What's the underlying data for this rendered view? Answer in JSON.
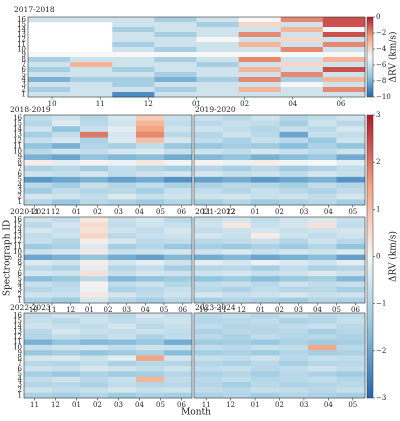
{
  "x_label": "Month",
  "y_label": "Spectrograph ID",
  "chart_data": [
    {
      "type": "heatmap",
      "title": "2017-2018",
      "row_labels": [
        "16",
        "15",
        "14",
        "13",
        "12",
        "11",
        "10",
        "9",
        "8",
        "7",
        "6",
        "5",
        "4",
        "3",
        "2",
        "1"
      ],
      "categories": [
        "10",
        "11",
        "12",
        "01",
        "02",
        "04",
        "06"
      ],
      "clim": [
        -10,
        0
      ],
      "colorbar": {
        "label": "ΔRV (km/s)",
        "lim": [
          -10,
          0
        ],
        "ticks": [
          0,
          {
            "value": -2,
            "label": "−2"
          },
          {
            "value": -4,
            "label": "−4"
          },
          {
            "value": -6,
            "label": "−6"
          },
          {
            "value": -8,
            "label": "−8"
          },
          {
            "value": -10,
            "label": "−10"
          }
        ]
      },
      "values": [
        [
          -6,
          -6,
          -6,
          -7,
          -6,
          -5,
          -2,
          -1
        ],
        [
          null,
          null,
          -6,
          -6,
          -7,
          -4,
          -6,
          -1
        ],
        [
          null,
          null,
          -7,
          -6,
          -6,
          -6,
          -3,
          -5
        ],
        [
          null,
          null,
          -6,
          -7,
          -6,
          -2,
          -6,
          -1
        ],
        [
          null,
          null,
          -6,
          -6,
          -5,
          -6,
          -4,
          -6
        ],
        [
          null,
          null,
          -7,
          -6,
          -6,
          -3,
          -6,
          -2
        ],
        [
          null,
          null,
          -6,
          -7,
          -6,
          -6,
          -2,
          -6
        ],
        [
          -5,
          -5,
          -5,
          -5,
          -5,
          -5,
          -5,
          -5
        ],
        [
          -7,
          -6,
          -6,
          -7,
          -6,
          -2,
          -6,
          -3
        ],
        [
          -6,
          -3,
          -6,
          -6,
          -7,
          -6,
          -4,
          -6
        ],
        [
          -7,
          -6,
          -7,
          -6,
          -6,
          -3,
          -6,
          -1
        ],
        [
          -6,
          -6,
          -6,
          -7,
          -6,
          -6,
          -2,
          -6
        ],
        [
          -8,
          -7,
          -7,
          -8,
          -7,
          -2,
          -7,
          -3
        ],
        [
          -6,
          -6,
          -7,
          -6,
          -6,
          -6,
          -5,
          -6
        ],
        [
          -7,
          -6,
          -6,
          -7,
          -6,
          -3,
          -6,
          -2
        ],
        [
          -6,
          -6,
          -9,
          -6,
          -6,
          -6,
          -6,
          -6
        ]
      ]
    },
    {
      "type": "heatmap",
      "title": "2018-2019",
      "row_labels": [
        "16",
        "15",
        "14",
        "13",
        "12",
        "11",
        "10",
        "9",
        "8",
        "7",
        "6",
        "5",
        "4",
        "3",
        "2",
        "1"
      ],
      "categories": [
        "11",
        "12",
        "01",
        "02",
        "03",
        "04",
        "05",
        "06"
      ],
      "clim": [
        -3,
        3
      ],
      "colorbar": {
        "label": "ΔRV (km/s)",
        "lim": [
          -3,
          3
        ],
        "ticks": [
          3,
          2,
          1,
          0,
          {
            "value": -1,
            "label": "−1"
          },
          {
            "value": -2,
            "label": "−2"
          },
          {
            "value": -3,
            "label": "−3"
          }
        ]
      },
      "values": [
        [
          -0.8,
          -0.6,
          -1.0,
          -0.5,
          0.8,
          -0.7
        ],
        [
          -1.0,
          -0.4,
          -0.9,
          -0.6,
          1.2,
          -0.8
        ],
        [
          -0.6,
          -1.5,
          -0.7,
          -0.3,
          1.5,
          -0.6
        ],
        [
          -1.2,
          -0.8,
          2.0,
          -0.5,
          1.8,
          -0.9
        ],
        [
          -0.7,
          -0.5,
          -1.1,
          -0.4,
          1.0,
          -0.5
        ],
        [
          -1.5,
          -1.8,
          -1.0,
          -1.2,
          -0.8,
          -1.4
        ],
        [
          -0.9,
          -0.6,
          -0.8,
          -0.5,
          -0.4,
          -0.7
        ],
        [
          -1.8,
          -2.0,
          -1.5,
          -1.7,
          -1.6,
          -1.9
        ],
        [
          0.2,
          -0.3,
          0.1,
          -0.2,
          0.3,
          -0.1
        ],
        [
          -1.1,
          -0.9,
          -1.3,
          -0.8,
          -1.0,
          -1.2
        ],
        [
          -0.6,
          -0.7,
          -0.5,
          -0.8,
          -0.6,
          -0.5
        ],
        [
          -2.2,
          -2.0,
          -1.8,
          -2.1,
          -1.9,
          -2.3
        ],
        [
          -0.9,
          -1.2,
          -0.7,
          -1.0,
          -0.8,
          -1.1
        ],
        [
          -1.3,
          -0.8,
          -1.0,
          -0.9,
          -1.2,
          -0.7
        ],
        [
          -0.5,
          -0.6,
          -0.8,
          -0.4,
          -0.7,
          -0.6
        ],
        [
          -1.0,
          -1.4,
          -0.9,
          -1.1,
          -1.3,
          -1.0
        ]
      ]
    },
    {
      "type": "heatmap",
      "title": "2019-2020",
      "categories": [
        "11",
        "12",
        "01",
        "02",
        "03",
        "04",
        "05"
      ],
      "clim": [
        -3,
        3
      ],
      "values": [
        [
          -0.7,
          -0.9,
          -0.6,
          -1.0,
          -0.8,
          -0.6
        ],
        [
          -0.9,
          -0.7,
          -0.8,
          -1.2,
          -0.6,
          -0.9
        ],
        [
          -0.6,
          -0.8,
          -1.0,
          -0.7,
          -0.9,
          -0.5
        ],
        [
          -1.0,
          -0.6,
          -0.9,
          -2.0,
          -0.7,
          -0.8
        ],
        [
          -0.8,
          -1.1,
          -0.7,
          -0.9,
          -1.4,
          -0.6
        ],
        [
          -1.4,
          -1.2,
          -1.3,
          -1.6,
          -1.1,
          -1.5
        ],
        [
          -0.6,
          -0.8,
          -0.5,
          -0.7,
          -0.9,
          -0.6
        ],
        [
          -1.7,
          -1.5,
          -1.8,
          -1.6,
          -1.4,
          -1.9
        ],
        [
          0.1,
          -0.2,
          0.2,
          -0.1,
          0.0,
          -0.3
        ],
        [
          -1.0,
          -1.2,
          -0.9,
          -1.3,
          -1.1,
          -0.8
        ],
        [
          -0.5,
          -0.7,
          -0.6,
          -0.8,
          -0.5,
          -0.7
        ],
        [
          -2.1,
          -1.9,
          -2.2,
          -2.0,
          -1.8,
          -2.3
        ],
        [
          -1.1,
          -0.9,
          -1.0,
          -1.2,
          -0.8,
          -1.0
        ],
        [
          -0.8,
          -1.0,
          -0.7,
          -0.9,
          -1.1,
          -0.8
        ],
        [
          -0.6,
          -0.5,
          -0.7,
          -0.6,
          -0.8,
          -0.5
        ],
        [
          -1.2,
          -1.0,
          -1.3,
          -1.1,
          -0.9,
          -1.2
        ]
      ]
    },
    {
      "type": "heatmap",
      "title": "2020-2021",
      "row_labels": [
        "16",
        "15",
        "14",
        "13",
        "12",
        "11",
        "10",
        "9",
        "8",
        "7",
        "6",
        "5",
        "4",
        "3",
        "2",
        "1"
      ],
      "categories": [
        "10",
        "11",
        "12",
        "01",
        "02",
        "03",
        "04",
        "05",
        "06"
      ],
      "clim": [
        -3,
        3
      ],
      "values": [
        [
          -0.6,
          -0.8,
          0.3,
          -0.7,
          -0.5,
          -0.9
        ],
        [
          -0.9,
          -0.5,
          0.5,
          -0.8,
          -0.6,
          -0.7
        ],
        [
          -0.5,
          -0.7,
          0.4,
          -0.6,
          -0.8,
          -0.5
        ],
        [
          -0.8,
          -0.6,
          0.6,
          -0.9,
          -0.7,
          -0.6
        ],
        [
          -0.7,
          -1.0,
          0.2,
          -0.5,
          -0.9,
          -0.8
        ],
        [
          -1.3,
          -1.1,
          -0.4,
          -1.2,
          -1.0,
          -1.4
        ],
        [
          -0.6,
          -0.5,
          0.3,
          -0.7,
          -0.6,
          -0.5
        ],
        [
          -2.0,
          -1.8,
          -1.5,
          -1.9,
          -2.1,
          -1.7
        ],
        [
          -0.4,
          -0.6,
          0.2,
          -0.5,
          -0.3,
          -0.6
        ],
        [
          -0.9,
          -1.1,
          -0.3,
          -1.0,
          -0.8,
          -1.2
        ],
        [
          -0.5,
          -0.6,
          0.4,
          -0.7,
          -0.5,
          -0.6
        ],
        [
          -1.6,
          -1.4,
          -0.9,
          -1.7,
          -1.5,
          -1.3
        ],
        [
          -0.7,
          -0.9,
          0.1,
          -0.8,
          -0.6,
          -1.0
        ],
        [
          -1.0,
          -0.8,
          -0.2,
          -1.1,
          -0.9,
          -0.7
        ],
        [
          -0.6,
          -0.7,
          0.3,
          -0.5,
          -0.8,
          -0.6
        ],
        [
          -1.1,
          -1.3,
          -0.5,
          -1.0,
          -1.2,
          -0.9
        ]
      ]
    },
    {
      "type": "heatmap",
      "title": "2021-2022",
      "categories": [
        "10",
        "11",
        "12",
        "01",
        "02",
        "03",
        "04",
        "05",
        "06"
      ],
      "clim": [
        -3,
        3
      ],
      "values": [
        [
          -0.7,
          -0.5,
          -0.8,
          -0.6,
          -0.4,
          -0.7
        ],
        [
          -0.6,
          0.3,
          -0.7,
          -0.5,
          0.4,
          -0.8
        ],
        [
          -0.8,
          -0.6,
          -0.5,
          -0.7,
          -0.6,
          -0.5
        ],
        [
          -0.5,
          -0.7,
          0.2,
          -0.6,
          -0.8,
          -0.6
        ],
        [
          -0.9,
          -0.8,
          -0.7,
          -1.0,
          -0.6,
          -0.9
        ],
        [
          -1.2,
          -1.4,
          -1.1,
          -1.3,
          -1.0,
          -1.5
        ],
        [
          -0.6,
          -0.4,
          -0.7,
          -0.5,
          -0.6,
          -0.4
        ],
        [
          -1.9,
          -1.7,
          -2.0,
          -1.8,
          -1.6,
          -2.1
        ],
        [
          -0.3,
          -0.5,
          -0.2,
          -0.4,
          -0.6,
          -0.3
        ],
        [
          -1.0,
          -0.9,
          -1.2,
          -0.8,
          -1.1,
          -1.0
        ],
        [
          -0.6,
          -0.5,
          -0.7,
          -0.6,
          -0.4,
          -0.6
        ],
        [
          -1.5,
          -1.3,
          -1.6,
          -1.4,
          -1.2,
          -1.7
        ],
        [
          -0.8,
          -0.7,
          -0.9,
          -0.6,
          -0.8,
          -0.7
        ],
        [
          -0.9,
          -1.1,
          -0.8,
          -1.0,
          -0.9,
          -1.2
        ],
        [
          -0.5,
          -0.7,
          -0.6,
          -0.5,
          -0.7,
          -0.6
        ],
        [
          -1.2,
          -1.0,
          -1.1,
          -1.3,
          -1.0,
          -1.1
        ]
      ]
    },
    {
      "type": "heatmap",
      "title": "2022-2023",
      "row_labels": [
        "16",
        "15",
        "14",
        "13",
        "12",
        "11",
        "10",
        "9",
        "8",
        "7",
        "6",
        "5",
        "4",
        "3",
        "2",
        "1"
      ],
      "categories": [
        "11",
        "12",
        "01",
        "02",
        "03",
        "04",
        "05",
        "06"
      ],
      "clim": [
        -3,
        3
      ],
      "values": [
        [
          -0.8,
          -0.6,
          -0.7,
          -0.9,
          -0.5,
          -0.7
        ],
        [
          -0.7,
          -0.9,
          -0.6,
          -0.8,
          -0.7,
          -0.6
        ],
        [
          -0.6,
          -0.7,
          -0.8,
          -0.5,
          -0.9,
          -0.7
        ],
        [
          -0.9,
          -0.5,
          -0.7,
          -0.8,
          -0.6,
          -0.8
        ],
        [
          -1.0,
          -0.8,
          -0.9,
          -0.7,
          -1.1,
          -0.8
        ],
        [
          -1.8,
          -1.5,
          -1.7,
          -1.6,
          -1.4,
          -1.9
        ],
        [
          -0.7,
          -0.6,
          -0.5,
          -0.8,
          -0.6,
          -0.7
        ],
        [
          -1.4,
          -1.2,
          -1.5,
          -1.3,
          -1.1,
          -1.6
        ],
        [
          -0.5,
          -0.4,
          -0.6,
          -0.3,
          1.5,
          -0.5
        ],
        [
          -0.9,
          -1.0,
          -0.8,
          -1.1,
          -0.9,
          -1.0
        ],
        [
          -0.6,
          -0.7,
          -0.5,
          -0.6,
          -0.8,
          -0.6
        ],
        [
          -1.2,
          -1.4,
          -1.1,
          -1.3,
          -1.2,
          -1.0
        ],
        [
          -0.8,
          -0.6,
          -0.9,
          -0.7,
          1.2,
          -0.8
        ],
        [
          -1.0,
          -0.9,
          -1.1,
          -0.8,
          -1.0,
          -0.9
        ],
        [
          -0.6,
          -0.8,
          -0.7,
          -0.5,
          -0.7,
          -0.6
        ],
        [
          -1.1,
          -1.2,
          -1.0,
          -1.3,
          -1.1,
          -1.2
        ]
      ]
    },
    {
      "type": "heatmap",
      "title": "2023-2024",
      "categories": [
        "11",
        "12",
        "01",
        "02",
        "03",
        "04",
        "05"
      ],
      "clim": [
        -3,
        3
      ],
      "values": [
        [
          -0.9,
          -0.8,
          -1.0,
          -0.7,
          -0.9,
          -0.8
        ],
        [
          -1.0,
          -0.9,
          -0.8,
          -1.1,
          -1.0,
          -0.7
        ],
        [
          -0.8,
          -1.0,
          -0.9,
          -0.8,
          -0.7,
          -0.9
        ],
        [
          -1.1,
          -0.9,
          -1.0,
          -0.9,
          -1.2,
          -1.0
        ],
        [
          -0.9,
          -1.1,
          -0.8,
          -1.0,
          -0.9,
          -1.1
        ],
        [
          -1.3,
          -1.2,
          -1.4,
          -1.1,
          -1.3,
          -1.2
        ],
        [
          -0.8,
          -0.9,
          -0.7,
          -0.8,
          1.4,
          -0.9
        ],
        [
          -1.2,
          -1.1,
          -1.3,
          -1.0,
          -1.2,
          -1.1
        ],
        [
          -0.7,
          -0.8,
          -0.6,
          -0.9,
          -0.7,
          -0.8
        ],
        [
          -1.0,
          -1.1,
          -0.9,
          -1.2,
          -1.0,
          -0.9
        ],
        [
          -0.8,
          -0.7,
          -0.9,
          -0.8,
          -0.6,
          -0.8
        ],
        [
          -1.1,
          -1.0,
          -1.2,
          -0.9,
          -1.1,
          -1.3
        ],
        [
          -0.9,
          -0.8,
          -1.0,
          -0.9,
          -0.8,
          -1.0
        ],
        [
          -1.0,
          -1.2,
          -0.9,
          -1.1,
          -1.0,
          -0.9
        ],
        [
          -0.8,
          -0.9,
          -0.7,
          -0.8,
          -0.9,
          -0.7
        ],
        [
          -1.1,
          -1.0,
          -1.2,
          -1.0,
          -1.1,
          -1.2
        ]
      ]
    }
  ]
}
